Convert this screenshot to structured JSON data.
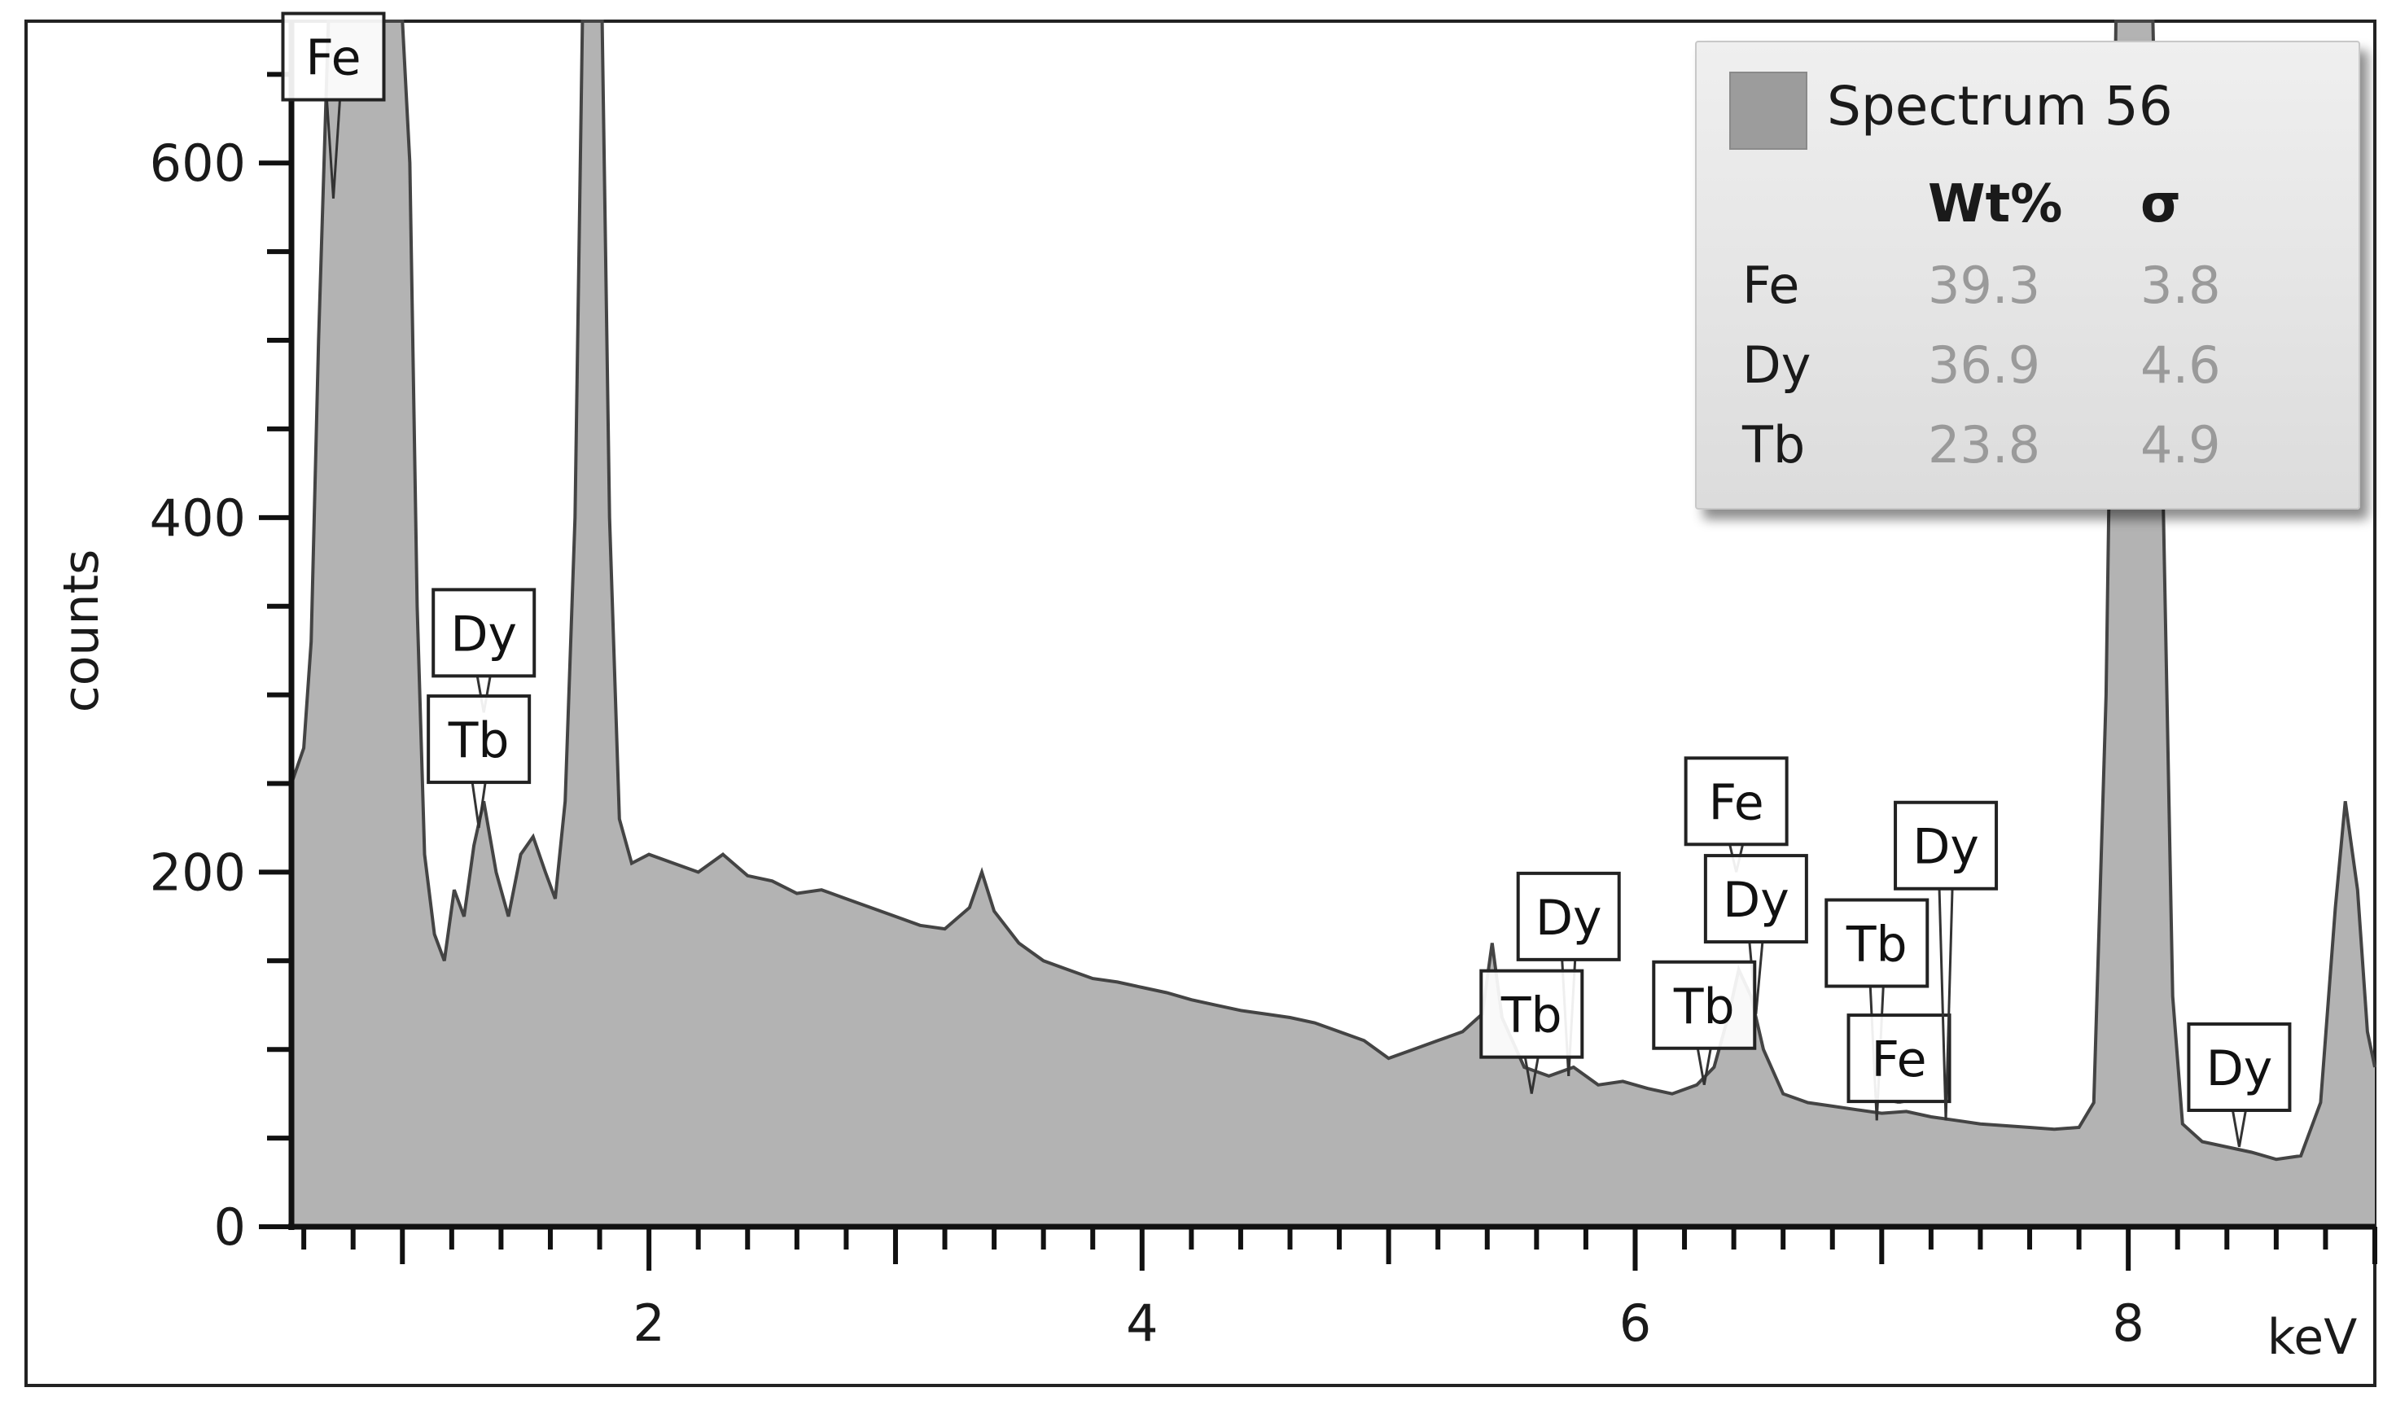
{
  "chart_data": {
    "type": "area",
    "title": "",
    "xlabel": "keV",
    "ylabel": "counts",
    "xlim": [
      0.55,
      9.0
    ],
    "ylim": [
      0,
      680
    ],
    "x_ticks": [
      2,
      4,
      6,
      8
    ],
    "y_ticks": [
      0,
      200,
      400,
      600
    ],
    "fill_color": "#b3b3b3",
    "line_color": "#444444",
    "grid": false,
    "series": [
      {
        "values_note": "",
        "points": [
          [
            0.55,
            250
          ],
          [
            0.6,
            270
          ],
          [
            0.63,
            330
          ],
          [
            0.66,
            500
          ],
          [
            0.7,
            680
          ],
          [
            0.74,
            680
          ],
          [
            0.82,
            680
          ],
          [
            0.87,
            680
          ],
          [
            0.93,
            680
          ],
          [
            1.0,
            680
          ],
          [
            1.03,
            600
          ],
          [
            1.06,
            350
          ],
          [
            1.09,
            210
          ],
          [
            1.13,
            165
          ],
          [
            1.17,
            150
          ],
          [
            1.21,
            190
          ],
          [
            1.25,
            175
          ],
          [
            1.29,
            215
          ],
          [
            1.33,
            240
          ],
          [
            1.38,
            200
          ],
          [
            1.43,
            175
          ],
          [
            1.48,
            210
          ],
          [
            1.53,
            220
          ],
          [
            1.58,
            200
          ],
          [
            1.62,
            185
          ],
          [
            1.66,
            240
          ],
          [
            1.7,
            400
          ],
          [
            1.73,
            680
          ],
          [
            1.81,
            680
          ],
          [
            1.84,
            400
          ],
          [
            1.88,
            230
          ],
          [
            1.93,
            205
          ],
          [
            2.0,
            210
          ],
          [
            2.1,
            205
          ],
          [
            2.2,
            200
          ],
          [
            2.3,
            210
          ],
          [
            2.4,
            198
          ],
          [
            2.5,
            195
          ],
          [
            2.6,
            188
          ],
          [
            2.7,
            190
          ],
          [
            2.8,
            185
          ],
          [
            2.9,
            180
          ],
          [
            3.0,
            175
          ],
          [
            3.1,
            170
          ],
          [
            3.2,
            168
          ],
          [
            3.3,
            180
          ],
          [
            3.35,
            200
          ],
          [
            3.4,
            178
          ],
          [
            3.5,
            160
          ],
          [
            3.6,
            150
          ],
          [
            3.7,
            145
          ],
          [
            3.8,
            140
          ],
          [
            3.9,
            138
          ],
          [
            4.0,
            135
          ],
          [
            4.1,
            132
          ],
          [
            4.2,
            128
          ],
          [
            4.3,
            125
          ],
          [
            4.4,
            122
          ],
          [
            4.5,
            120
          ],
          [
            4.6,
            118
          ],
          [
            4.7,
            115
          ],
          [
            4.8,
            110
          ],
          [
            4.9,
            105
          ],
          [
            5.0,
            95
          ],
          [
            5.1,
            100
          ],
          [
            5.2,
            105
          ],
          [
            5.3,
            110
          ],
          [
            5.38,
            120
          ],
          [
            5.42,
            160
          ],
          [
            5.46,
            118
          ],
          [
            5.55,
            90
          ],
          [
            5.65,
            85
          ],
          [
            5.75,
            90
          ],
          [
            5.85,
            80
          ],
          [
            5.95,
            82
          ],
          [
            6.05,
            78
          ],
          [
            6.15,
            75
          ],
          [
            6.25,
            80
          ],
          [
            6.32,
            90
          ],
          [
            6.38,
            120
          ],
          [
            6.42,
            145
          ],
          [
            6.47,
            130
          ],
          [
            6.52,
            100
          ],
          [
            6.6,
            75
          ],
          [
            6.7,
            70
          ],
          [
            6.8,
            68
          ],
          [
            6.9,
            66
          ],
          [
            7.0,
            64
          ],
          [
            7.1,
            65
          ],
          [
            7.2,
            62
          ],
          [
            7.3,
            60
          ],
          [
            7.4,
            58
          ],
          [
            7.5,
            57
          ],
          [
            7.6,
            56
          ],
          [
            7.7,
            55
          ],
          [
            7.8,
            56
          ],
          [
            7.86,
            70
          ],
          [
            7.91,
            300
          ],
          [
            7.95,
            680
          ],
          [
            8.1,
            680
          ],
          [
            8.14,
            420
          ],
          [
            8.18,
            130
          ],
          [
            8.22,
            58
          ],
          [
            8.3,
            48
          ],
          [
            8.4,
            45
          ],
          [
            8.5,
            42
          ],
          [
            8.6,
            38
          ],
          [
            8.7,
            40
          ],
          [
            8.78,
            70
          ],
          [
            8.84,
            180
          ],
          [
            8.88,
            240
          ],
          [
            8.93,
            190
          ],
          [
            8.97,
            110
          ],
          [
            9.0,
            90
          ]
        ]
      }
    ],
    "peak_labels": [
      {
        "text": "Fe",
        "x": 0.72,
        "y_box": 660,
        "y_tip": 580
      },
      {
        "text": "Dy",
        "x": 1.33,
        "y_box": 335,
        "y_tip": 290
      },
      {
        "text": "Tb",
        "x": 1.31,
        "y_box": 275,
        "y_tip": 225
      },
      {
        "text": "Dy",
        "x": 5.73,
        "y_box": 175,
        "y_tip": 85
      },
      {
        "text": "Tb",
        "x": 5.58,
        "y_box": 120,
        "y_tip": 75
      },
      {
        "text": "Fe",
        "x": 6.41,
        "y_box": 240,
        "y_tip": 200
      },
      {
        "text": "Dy",
        "x": 6.49,
        "y_box": 185,
        "y_tip": 120
      },
      {
        "text": "Tb",
        "x": 6.28,
        "y_box": 125,
        "y_tip": 80
      },
      {
        "text": "Tb",
        "x": 6.98,
        "y_box": 160,
        "y_tip": 60
      },
      {
        "text": "Fe",
        "x": 7.07,
        "y_box": 95,
        "y_tip": 70
      },
      {
        "text": "Dy",
        "x": 7.26,
        "y_box": 215,
        "y_tip": 60
      },
      {
        "text": "Dy",
        "x": 8.45,
        "y_box": 90,
        "y_tip": 45
      }
    ]
  },
  "legend": {
    "spectrum_name": "Spectrum 56",
    "swatch_color": "#9c9c9c",
    "header_wt": "Wt%",
    "header_sigma": "σ",
    "rows": [
      {
        "element": "Fe",
        "wt": "39.3",
        "sigma": "3.8"
      },
      {
        "element": "Dy",
        "wt": "36.9",
        "sigma": "4.6"
      },
      {
        "element": "Tb",
        "wt": "23.8",
        "sigma": "4.9"
      }
    ]
  }
}
